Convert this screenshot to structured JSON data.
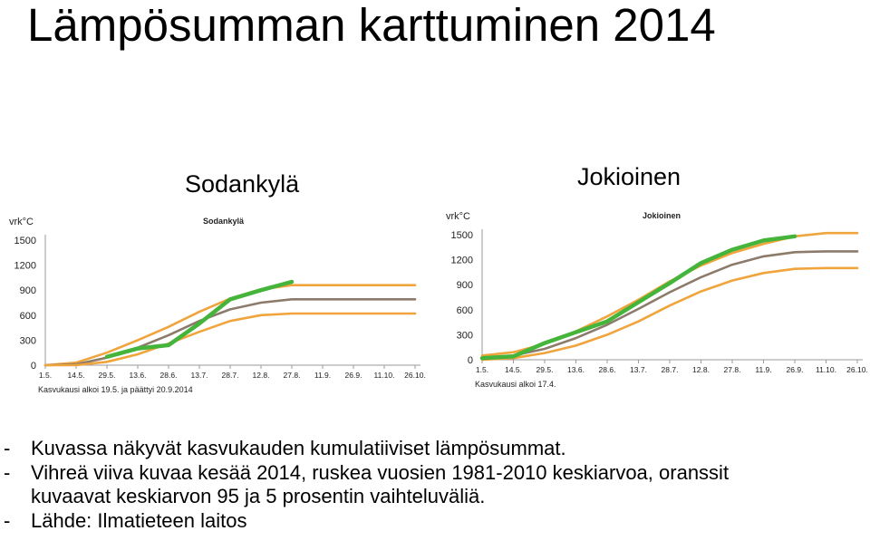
{
  "title": "Lämpösumman karttuminen 2014",
  "captions": {
    "left": "Sodankylä",
    "right": "Jokioinen"
  },
  "bullets": [
    "Kuvassa näkyvät kasvukauden kumulatiiviset lämpösummat.",
    "Vihreä viiva kuvaa kesää 2014, ruskea vuosien 1981-2010 keskiarvoa, oranssit",
    "kuvaavat keskiarvon 95 ja 5 prosentin vaihteluväliä.",
    "Lähde: Ilmatieteen laitos"
  ],
  "colors": {
    "green": "#44b53a",
    "brown": "#8c7b6b",
    "orange": "#f0a43c"
  },
  "chart_data": [
    {
      "type": "line",
      "title": "Sodankylä",
      "ylabel": "vrk°C",
      "note": "Kasvukausi alkoi 19.5. ja päättyi 20.9.2014",
      "categories": [
        "1.5.",
        "14.5.",
        "29.5.",
        "13.6.",
        "28.6.",
        "13.7.",
        "28.7.",
        "12.8.",
        "27.8.",
        "11.9.",
        "26.9.",
        "11.10.",
        "26.10."
      ],
      "yticks": [
        0,
        300,
        600,
        900,
        1200,
        1500
      ],
      "ylim": [
        0,
        1500
      ],
      "series": [
        {
          "role": "p95",
          "color": "#f0a43c",
          "values": [
            0,
            30,
            150,
            300,
            460,
            640,
            800,
            910,
            960,
            960,
            960,
            960,
            960
          ]
        },
        {
          "role": "mean",
          "color": "#8c7b6b",
          "values": [
            0,
            10,
            90,
            210,
            360,
            530,
            670,
            750,
            790,
            790,
            790,
            790,
            790
          ]
        },
        {
          "role": "p05",
          "color": "#f0a43c",
          "values": [
            0,
            0,
            40,
            130,
            260,
            400,
            530,
            600,
            620,
            620,
            620,
            620,
            620
          ]
        },
        {
          "role": "y2014",
          "color": "#44b53a",
          "values": [
            null,
            null,
            100,
            200,
            240,
            500,
            790,
            900,
            1000,
            null,
            null,
            null,
            null
          ],
          "x_start": 1.2,
          "x_end": 8.6
        }
      ]
    },
    {
      "type": "line",
      "title": "Jokioinen",
      "ylabel": "vrk°C",
      "note": "Kasvukausi alkoi 17.4.",
      "categories": [
        "1.5.",
        "14.5.",
        "29.5.",
        "13.6.",
        "28.6.",
        "13.7.",
        "28.7.",
        "12.8.",
        "27.8.",
        "11.9.",
        "26.9.",
        "11.10.",
        "26.10."
      ],
      "yticks": [
        0,
        300,
        600,
        900,
        1200,
        1500
      ],
      "ylim": [
        0,
        1500
      ],
      "series": [
        {
          "role": "p95",
          "color": "#f0a43c",
          "values": [
            50,
            90,
            190,
            340,
            520,
            720,
            940,
            1130,
            1280,
            1390,
            1480,
            1520,
            1520
          ]
        },
        {
          "role": "mean",
          "color": "#8c7b6b",
          "values": [
            20,
            50,
            130,
            260,
            420,
            610,
            810,
            990,
            1140,
            1240,
            1290,
            1300,
            1300
          ]
        },
        {
          "role": "p05",
          "color": "#f0a43c",
          "values": [
            0,
            20,
            80,
            170,
            300,
            460,
            650,
            820,
            950,
            1040,
            1090,
            1100,
            1100
          ]
        },
        {
          "role": "y2014",
          "color": "#44b53a",
          "values": [
            20,
            40,
            200,
            330,
            460,
            690,
            920,
            1160,
            1320,
            1430,
            1480,
            null,
            null
          ],
          "x_start": 0,
          "x_end": 10.6
        }
      ]
    }
  ]
}
